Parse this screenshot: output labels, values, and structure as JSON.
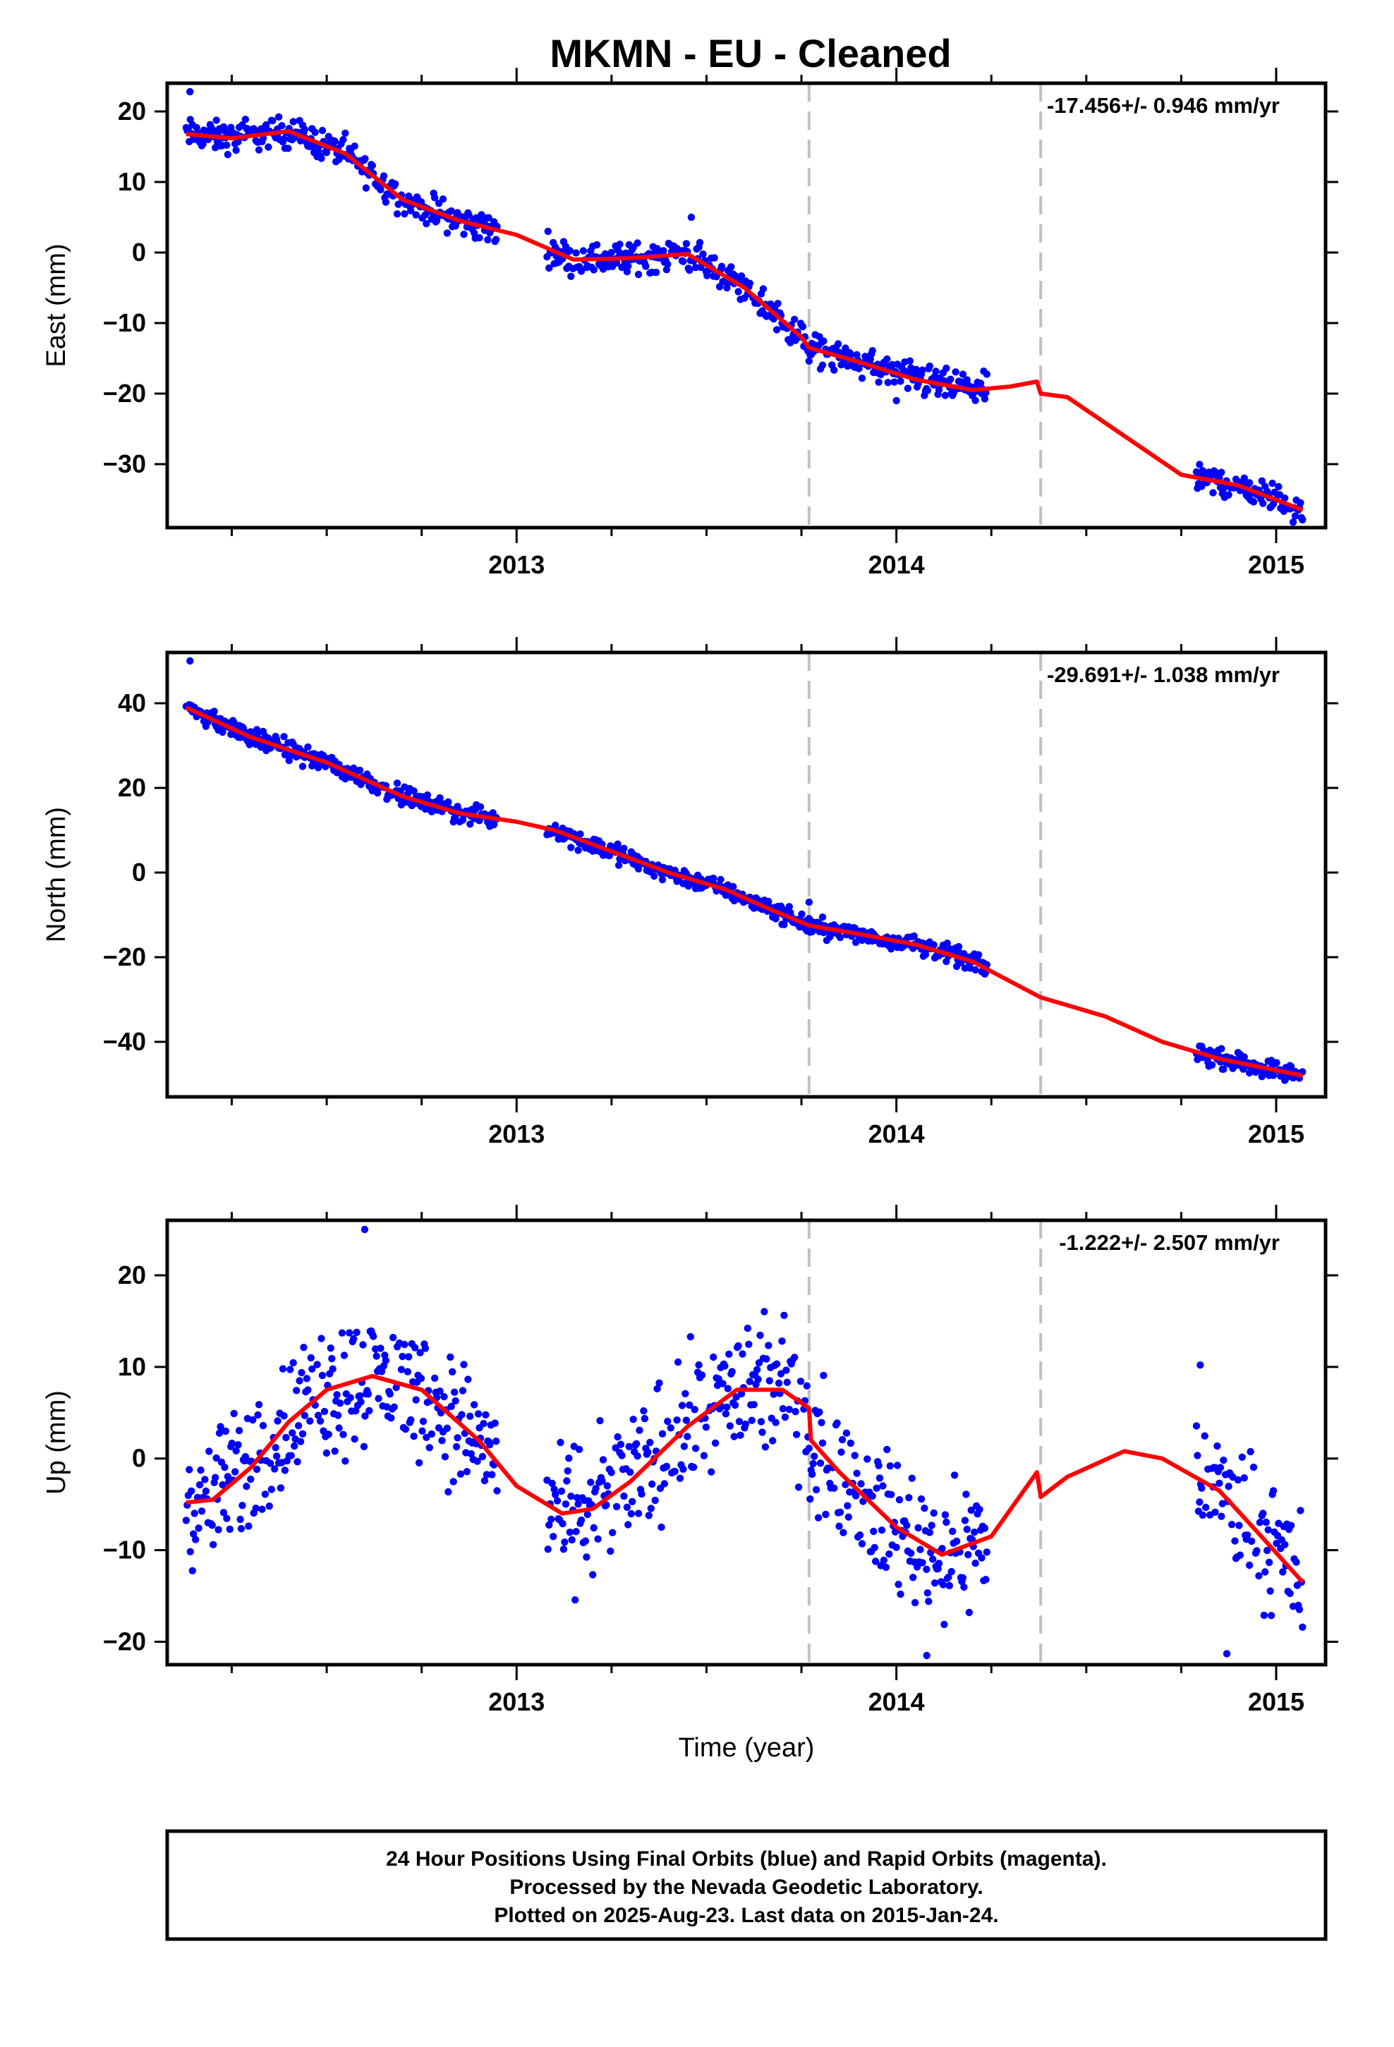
{
  "chart_title": "MKMN  - EU - Cleaned",
  "footer_lines": [
    "24 Hour Positions Using Final Orbits (blue) and Rapid Orbits (magenta).",
    "Processed by the Nevada Geodetic Laboratory.",
    "Plotted on 2025-Aug-23. Last data on 2015-Jan-24."
  ],
  "colors": {
    "data": "#0000ff",
    "model": "#ff0000",
    "break_line": "#c0c0c0",
    "frame": "#000000"
  },
  "chart_data": [
    {
      "type": "scatter",
      "ylabel": "East (mm)",
      "xlabel": "",
      "rate_label": "-17.456+/- 0.946 mm/yr",
      "xlim": [
        2012.08,
        2015.13
      ],
      "ylim": [
        -39,
        24
      ],
      "yticks": [
        -30,
        -20,
        -10,
        0,
        10,
        20
      ],
      "xticks": [
        2013,
        2014,
        2015
      ],
      "x_minor": [
        2012.25,
        2012.5,
        2012.75,
        2013.25,
        2013.5,
        2013.75,
        2014.25,
        2014.5,
        2014.75
      ],
      "breaks": [
        2013.77,
        2014.38
      ],
      "data_segments": [
        [
          2012.13,
          2012.95
        ],
        [
          2013.08,
          2014.24
        ],
        [
          2014.79,
          2015.07
        ]
      ],
      "outliers": [
        [
          2012.14,
          22.8
        ],
        [
          2012.37,
          17.5
        ],
        [
          2013.46,
          5.0
        ],
        [
          2014.0,
          -21.0
        ]
      ],
      "noise": 1.5,
      "model": [
        [
          2012.13,
          16.8
        ],
        [
          2012.25,
          16.2
        ],
        [
          2012.4,
          17.2
        ],
        [
          2012.55,
          14.0
        ],
        [
          2012.7,
          7.5
        ],
        [
          2012.85,
          4.5
        ],
        [
          2013.0,
          2.5
        ],
        [
          2013.15,
          -1.0
        ],
        [
          2013.3,
          -0.8
        ],
        [
          2013.45,
          -0.2
        ],
        [
          2013.6,
          -5.0
        ],
        [
          2013.75,
          -12.0
        ],
        [
          2013.77,
          -13.5
        ],
        [
          2013.9,
          -15.5
        ],
        [
          2014.05,
          -18.0
        ],
        [
          2014.2,
          -19.5
        ],
        [
          2014.3,
          -19.0
        ],
        [
          2014.37,
          -18.3
        ],
        [
          2014.38,
          -20.0
        ],
        [
          2014.45,
          -20.5
        ],
        [
          2014.6,
          -26.0
        ],
        [
          2014.75,
          -31.5
        ],
        [
          2014.9,
          -33.0
        ],
        [
          2015.07,
          -36.5
        ]
      ]
    },
    {
      "type": "scatter",
      "ylabel": "North (mm)",
      "xlabel": "",
      "rate_label": "-29.691+/- 1.038 mm/yr",
      "xlim": [
        2012.08,
        2015.13
      ],
      "ylim": [
        -53,
        52
      ],
      "yticks": [
        -40,
        -20,
        0,
        20,
        40
      ],
      "xticks": [
        2013,
        2014,
        2015
      ],
      "x_minor": [
        2012.25,
        2012.5,
        2012.75,
        2013.25,
        2013.5,
        2013.75,
        2014.25,
        2014.5,
        2014.75
      ],
      "breaks": [
        2013.77,
        2014.38
      ],
      "data_segments": [
        [
          2012.13,
          2012.95
        ],
        [
          2013.08,
          2014.24
        ],
        [
          2014.79,
          2015.07
        ]
      ],
      "outliers": [
        [
          2012.14,
          50.0
        ],
        [
          2013.77,
          -7.0
        ]
      ],
      "noise": 1.5,
      "model": [
        [
          2012.13,
          39.0
        ],
        [
          2012.3,
          32.0
        ],
        [
          2012.5,
          26.0
        ],
        [
          2012.7,
          18.0
        ],
        [
          2012.85,
          14.0
        ],
        [
          2013.0,
          12.0
        ],
        [
          2013.1,
          10.0
        ],
        [
          2013.25,
          5.0
        ],
        [
          2013.4,
          0.0
        ],
        [
          2013.55,
          -4.0
        ],
        [
          2013.65,
          -8.0
        ],
        [
          2013.77,
          -12.5
        ],
        [
          2013.9,
          -14.5
        ],
        [
          2014.05,
          -17.0
        ],
        [
          2014.2,
          -21.0
        ],
        [
          2014.38,
          -29.5
        ],
        [
          2014.55,
          -34.0
        ],
        [
          2014.7,
          -40.0
        ],
        [
          2014.85,
          -44.0
        ],
        [
          2015.07,
          -48.0
        ]
      ]
    },
    {
      "type": "scatter",
      "ylabel": "Up (mm)",
      "xlabel": "Time (year)",
      "rate_label": "-1.222+/- 2.507 mm/yr",
      "xlim": [
        2012.08,
        2015.13
      ],
      "ylim": [
        -22.5,
        26
      ],
      "yticks": [
        -20,
        -10,
        0,
        10,
        20
      ],
      "xticks": [
        2013,
        2014,
        2015
      ],
      "x_minor": [
        2012.25,
        2012.5,
        2012.75,
        2013.25,
        2013.5,
        2013.75,
        2014.25,
        2014.5,
        2014.75
      ],
      "breaks": [
        2013.77,
        2014.38
      ],
      "data_segments": [
        [
          2012.13,
          2012.95
        ],
        [
          2013.08,
          2014.24
        ],
        [
          2014.79,
          2015.07
        ]
      ],
      "outliers": [
        [
          2012.6,
          25.0
        ],
        [
          2014.08,
          -21.5
        ],
        [
          2014.8,
          10.2
        ],
        [
          2014.87,
          -21.3
        ]
      ],
      "noise": 5.0,
      "model": [
        [
          2012.13,
          -4.8
        ],
        [
          2012.2,
          -4.5
        ],
        [
          2012.3,
          -1.0
        ],
        [
          2012.4,
          4.0
        ],
        [
          2012.5,
          7.5
        ],
        [
          2012.62,
          9.0
        ],
        [
          2012.75,
          7.5
        ],
        [
          2012.9,
          2.0
        ],
        [
          2013.0,
          -3.0
        ],
        [
          2013.12,
          -6.0
        ],
        [
          2013.2,
          -5.5
        ],
        [
          2013.3,
          -2.5
        ],
        [
          2013.45,
          3.5
        ],
        [
          2013.58,
          7.5
        ],
        [
          2013.7,
          7.5
        ],
        [
          2013.77,
          5.5
        ],
        [
          2013.775,
          2.0
        ],
        [
          2013.85,
          -1.5
        ],
        [
          2014.0,
          -7.5
        ],
        [
          2014.12,
          -10.5
        ],
        [
          2014.25,
          -8.5
        ],
        [
          2014.37,
          -1.5
        ],
        [
          2014.38,
          -4.2
        ],
        [
          2014.45,
          -2.0
        ],
        [
          2014.6,
          0.8
        ],
        [
          2014.7,
          0.0
        ],
        [
          2014.85,
          -3.5
        ],
        [
          2014.95,
          -8.0
        ],
        [
          2015.07,
          -13.5
        ]
      ]
    }
  ]
}
